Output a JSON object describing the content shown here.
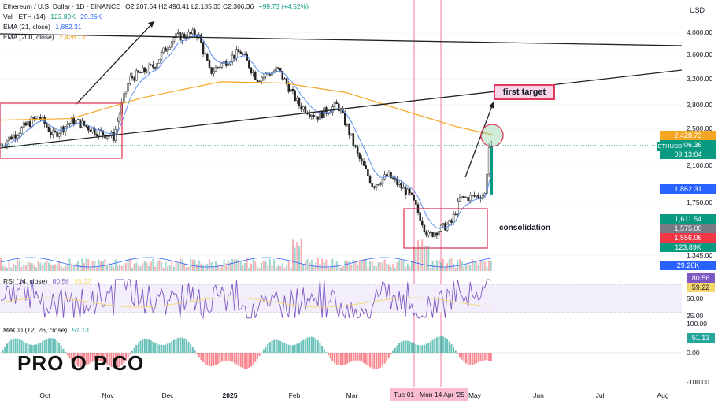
{
  "header": {
    "title": "Ethereum / U.S. Dollar · 1D · BINANCE",
    "ohlc": "O2,207.64  H2,490.41  L2,185.33  C2,306.36",
    "change": "+99.73 (+4.52%)",
    "vol_label": "Vol · ETH (14)",
    "vol_v1": "123.89K",
    "vol_v2": "29.26K",
    "ema21_label": "EMA (21, close)",
    "ema21_value": "1,862.31",
    "ema200_label": "EMA (200, close)",
    "ema200_value": "2,428.73",
    "rsi_label": "RSI (14, close)",
    "rsi_v1": "80.56",
    "rsi_v2": "59.22",
    "macd_label": "MACD (12, 26, close)",
    "macd_value": "51.13"
  },
  "currency": "USD",
  "notes": {
    "target": "first target",
    "consolidation": "consolidation"
  },
  "logo": "PRO O P.CO",
  "price_badges": [
    {
      "text": "2,428.73",
      "color": "#f5a623",
      "price": 2428.73
    },
    {
      "text": "2,306.36",
      "color": "#089981",
      "price": 2306.36
    },
    {
      "text": "09:13:04",
      "color": "#089981",
      "price": 2190
    },
    {
      "text": "1,862.31",
      "color": "#2962ff",
      "price": 1862.31
    },
    {
      "text": "1,611.54",
      "color": "#089981",
      "price": 1611.54
    },
    {
      "text": "1,575.00",
      "color": "#787b86",
      "price": 1575
    },
    {
      "text": "1,556.06",
      "color": "#f23645",
      "price": 1556.06
    },
    {
      "text": "123.89K",
      "color": "#089981",
      "price": 1440
    },
    {
      "text": "29.26K",
      "color": "#2962ff",
      "price": 1290
    }
  ],
  "ethusd_tag": "ETHUSD",
  "rsi_badges": [
    {
      "text": "80.56",
      "color": "#7e57c2"
    },
    {
      "text": "59.22",
      "color": "#f5d76e"
    }
  ],
  "macd_badge": {
    "text": "51.13",
    "color": "#26a69a"
  },
  "x_markers": [
    "Tue 01",
    "Mon 14 Apr '25"
  ],
  "chart_data": {
    "type": "candlestick",
    "title": "Ethereum / U.S. Dollar · 1D · BINANCE",
    "y_ticks": [
      4000,
      3600,
      3200,
      2800,
      2500,
      2100,
      1750,
      1345
    ],
    "y_tick_labels": [
      "4,000.00",
      "3,600.00",
      "3,200.00",
      "2,800.00",
      "2,500.00",
      "2,100.00",
      "1,750.00",
      "1,345.00"
    ],
    "rsi_ticks": [
      "50.00",
      "25.00"
    ],
    "macd_ticks": [
      "100.00",
      "0.00",
      "-100.00"
    ],
    "x_ticks": [
      "Oct",
      "Nov",
      "Dec",
      "2025",
      "Feb",
      "Mar",
      "Jun",
      "Jul",
      "Aug"
    ],
    "price_path": [
      [
        "Sep 10",
        2320
      ],
      [
        "Sep 20",
        2500
      ],
      [
        "Sep 28",
        2650
      ],
      [
        "Oct 5",
        2420
      ],
      [
        "Oct 15",
        2600
      ],
      [
        "Oct 25",
        2480
      ],
      [
        "Nov 4",
        2400
      ],
      [
        "Nov 12",
        3200
      ],
      [
        "Nov 24",
        3400
      ],
      [
        "Dec 4",
        3900
      ],
      [
        "Dec 16",
        3980
      ],
      [
        "Dec 22",
        3300
      ],
      [
        "Jan 6",
        3650
      ],
      [
        "Jan 14",
        3200
      ],
      [
        "Jan 24",
        3350
      ],
      [
        "Feb 3",
        2800
      ],
      [
        "Feb 12",
        2650
      ],
      [
        "Feb 22",
        2800
      ],
      [
        "Mar 4",
        2200
      ],
      [
        "Mar 12",
        1900
      ],
      [
        "Mar 20",
        2000
      ],
      [
        "Apr 1",
        1800
      ],
      [
        "Apr 9",
        1480
      ],
      [
        "Apr 20",
        1580
      ],
      [
        "Apr 24",
        1780
      ],
      [
        "May 6",
        1820
      ],
      [
        "May 8",
        2306
      ]
    ]
  }
}
